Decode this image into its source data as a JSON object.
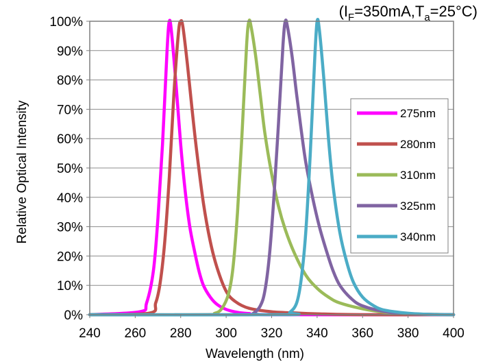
{
  "chart_data": {
    "type": "line",
    "condition": {
      "open": "(I",
      "i_sub": "F",
      "mid": "=350mA,T",
      "t_sub": "a",
      "close": "=25°C)"
    },
    "xlabel": "Wavelength (nm)",
    "ylabel": "Relative Optical Intensity",
    "xlim": [
      240,
      400
    ],
    "ylim": [
      0,
      100
    ],
    "x_ticks": [
      "240",
      "260",
      "280",
      "300",
      "320",
      "340",
      "360",
      "380",
      "400"
    ],
    "y_ticks": [
      "0%",
      "10%",
      "20%",
      "30%",
      "40%",
      "50%",
      "60%",
      "70%",
      "80%",
      "90%",
      "100%"
    ],
    "grid": "horizontal",
    "legend_position": "right",
    "series": [
      {
        "name": "275nm",
        "color": "#ff00ff",
        "x": [
          240,
          262,
          265,
          268,
          270,
          272,
          274,
          275,
          276,
          278,
          280,
          282,
          284,
          286,
          288,
          290,
          293,
          296,
          300,
          305,
          310,
          320,
          400
        ],
        "y": [
          0,
          1,
          4,
          15,
          33,
          58,
          90,
          100,
          96,
          78,
          58,
          42,
          30,
          22,
          15,
          10,
          6,
          3.5,
          1.8,
          0.8,
          0.4,
          0,
          0
        ]
      },
      {
        "name": "280nm",
        "color": "#c0504d",
        "x": [
          240,
          266,
          269,
          271,
          273,
          275,
          277,
          279,
          280,
          281,
          283,
          285,
          287,
          290,
          293,
          296,
          300,
          304,
          310,
          320,
          330,
          340,
          360,
          400
        ],
        "y": [
          0,
          0.5,
          4,
          11,
          25,
          47,
          75,
          96,
          100,
          98,
          85,
          70,
          56,
          38,
          25,
          16,
          8,
          4.5,
          2.2,
          1,
          0.6,
          0.3,
          0,
          0
        ]
      },
      {
        "name": "310nm",
        "color": "#9bbb59",
        "x": [
          240,
          290,
          295,
          298,
          301,
          303,
          305,
          307,
          309,
          310,
          311,
          313,
          315,
          317,
          320,
          323,
          326,
          330,
          335,
          340,
          345,
          350,
          360,
          370,
          380,
          400
        ],
        "y": [
          0,
          0,
          0.5,
          2,
          7,
          16,
          35,
          62,
          92,
          100,
          98,
          88,
          75,
          62,
          48,
          37,
          29,
          21,
          13.5,
          9,
          6,
          4,
          2,
          0.8,
          0.3,
          0
        ]
      },
      {
        "name": "325nm",
        "color": "#8064a2",
        "x": [
          240,
          308,
          312,
          315,
          317,
          319,
          321,
          323,
          325,
          326,
          327,
          329,
          331,
          333,
          335,
          338,
          341,
          344,
          347,
          350,
          355,
          360,
          370,
          380,
          400
        ],
        "y": [
          0,
          0,
          0.5,
          3,
          8,
          20,
          40,
          65,
          92,
          100,
          98,
          88,
          75,
          63,
          52,
          40,
          30,
          22,
          15,
          10,
          5.5,
          3,
          1,
          0.3,
          0
        ]
      },
      {
        "name": "340nm",
        "color": "#4bacc6",
        "x": [
          240,
          325,
          328,
          331,
          333,
          335,
          337,
          339,
          340,
          341,
          343,
          345,
          347,
          350,
          353,
          356,
          360,
          365,
          370,
          380,
          390,
          400
        ],
        "y": [
          0,
          0,
          0.8,
          4,
          12,
          28,
          55,
          88,
          100,
          97,
          80,
          60,
          44,
          28,
          18,
          11,
          6,
          3,
          1.5,
          0.5,
          0.1,
          0
        ]
      }
    ]
  }
}
